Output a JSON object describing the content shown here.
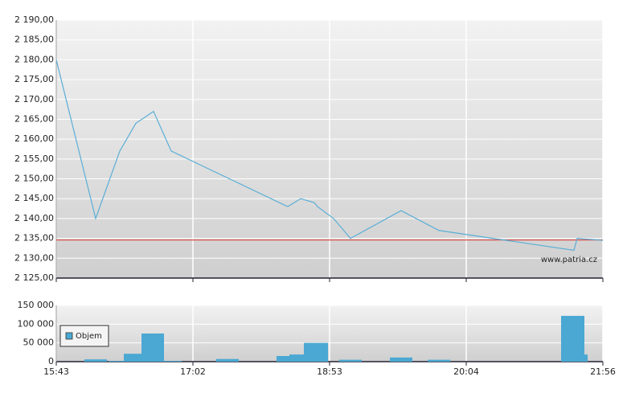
{
  "chart_data": [
    {
      "type": "line",
      "annotation": "www.patria.cz",
      "grid": true,
      "xlim": [
        0,
        68
      ],
      "ylim": [
        2125,
        2190
      ],
      "yticks": [
        {
          "value": 2125,
          "label": "2 125,00"
        },
        {
          "value": 2130,
          "label": "2 130,00"
        },
        {
          "value": 2135,
          "label": "2 135,00"
        },
        {
          "value": 2140,
          "label": "2 140,00"
        },
        {
          "value": 2145,
          "label": "2 145,00"
        },
        {
          "value": 2150,
          "label": "2 150,00"
        },
        {
          "value": 2155,
          "label": "2 155,00"
        },
        {
          "value": 2160,
          "label": "2 160,00"
        },
        {
          "value": 2165,
          "label": "2 165,00"
        },
        {
          "value": 2170,
          "label": "2 170,00"
        },
        {
          "value": 2175,
          "label": "2 175,00"
        },
        {
          "value": 2180,
          "label": "2 180,00"
        },
        {
          "value": 2185,
          "label": "2 185,00"
        },
        {
          "value": 2190,
          "label": "2 190,00"
        }
      ],
      "reference_line": {
        "value": 2134.6,
        "color": "#d9534f"
      },
      "series": [
        {
          "color": "#5aaed6",
          "x": [
            0,
            4.9,
            7.9,
            9.9,
            12.1,
            14.3,
            28.8,
            30.4,
            32.1,
            32.5,
            34.5,
            36.6,
            42.9,
            47.6,
            64.4,
            64.8,
            68
          ],
          "values": [
            2180,
            2140,
            2157,
            2164,
            2167,
            2157,
            2143,
            2145,
            2144,
            2143,
            2140,
            2135,
            2142,
            2137,
            2132,
            2135,
            2134.5
          ]
        }
      ]
    },
    {
      "type": "bar",
      "grid": true,
      "legend": "upper left",
      "xlim": [
        0,
        68
      ],
      "ylim": [
        0,
        150000
      ],
      "xticks": [
        {
          "value": 0,
          "label": "15:43"
        },
        {
          "value": 17,
          "label": "17:02"
        },
        {
          "value": 34,
          "label": "18:53"
        },
        {
          "value": 51,
          "label": "20:04"
        },
        {
          "value": 68,
          "label": "21:56"
        }
      ],
      "yticks": [
        {
          "value": 0,
          "label": "0"
        },
        {
          "value": 50000,
          "label": "50 000"
        },
        {
          "value": 100000,
          "label": "100 000"
        },
        {
          "value": 150000,
          "label": "150 000"
        }
      ],
      "series": [
        {
          "name": "Objem",
          "color": "#4aa8d3",
          "x": [
            3.5,
            6.5,
            8.4,
            10.6,
            13.4,
            19.9,
            27.4,
            29,
            30.8,
            35.2,
            41.5,
            46.2,
            62.8,
            65.7
          ],
          "x_end": [
            6.3,
            8.4,
            10.6,
            13.4,
            15.6,
            22.7,
            29,
            30.8,
            33.8,
            38,
            44.3,
            49,
            65.7,
            66.1
          ],
          "values": [
            6000,
            2000,
            21000,
            75000,
            2000,
            7000,
            15000,
            19000,
            50000,
            5000,
            11000,
            5000,
            122000,
            19000
          ]
        }
      ]
    }
  ]
}
